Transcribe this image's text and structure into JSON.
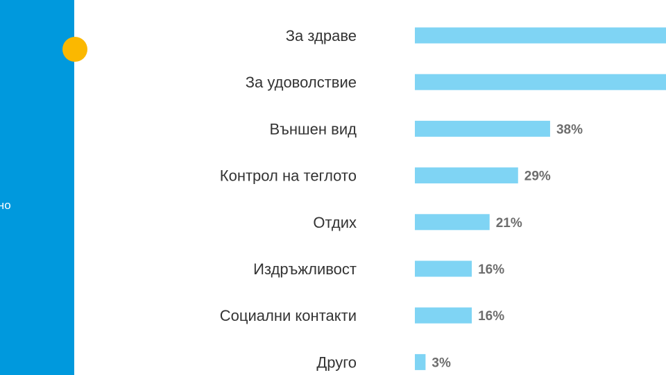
{
  "side_panel": {
    "text": "елно",
    "color": "#0099dd",
    "dot_color": "#fbb800"
  },
  "chart_data": {
    "type": "bar",
    "orientation": "horizontal",
    "categories": [
      "За здраве",
      "За удоволствие",
      "Външен вид",
      "Контрол на теглото",
      "Отдих",
      "Издръжливост",
      "Социални контакти",
      "Друго"
    ],
    "values": [
      null,
      null,
      38,
      29,
      21,
      16,
      16,
      3
    ],
    "value_labels": [
      "",
      "",
      "38%",
      "29%",
      "21%",
      "16%",
      "16%",
      "3%"
    ],
    "bar_color": "#7fd4f4",
    "title": "",
    "xlabel": "",
    "ylabel": "",
    "grid": false
  }
}
